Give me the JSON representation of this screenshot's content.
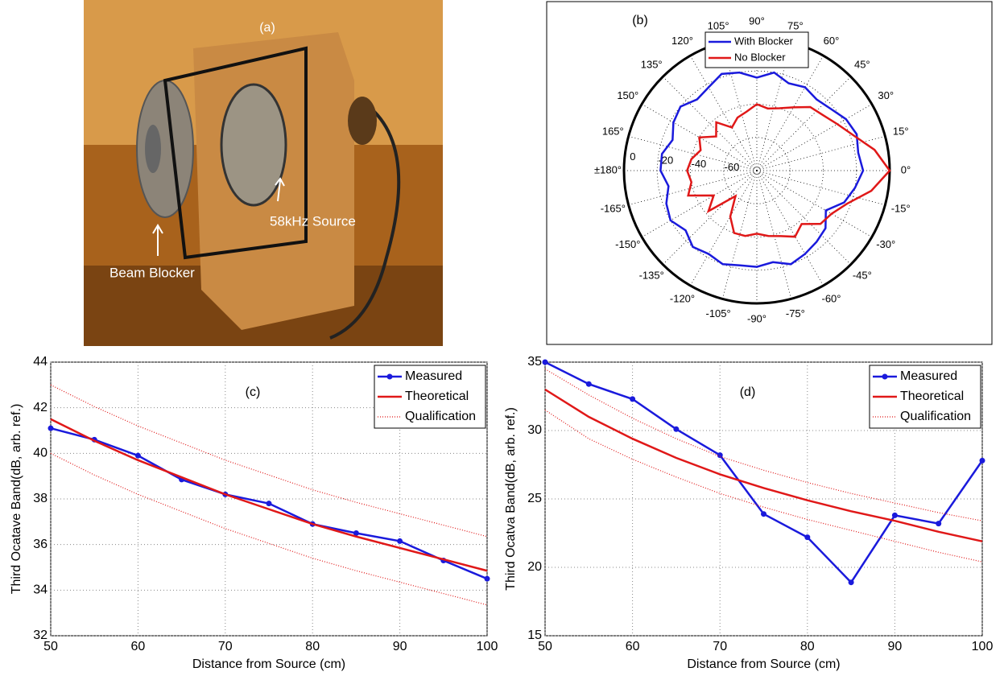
{
  "photo": {
    "label": "(a)",
    "source_label": "58kHz Source",
    "blocker_label": "Beam Blocker"
  },
  "chart_data": [
    {
      "type": "polar",
      "title": "(b)",
      "theta": [
        0,
        10,
        20,
        30,
        40,
        50,
        60,
        70,
        80,
        90,
        100,
        110,
        120,
        130,
        140,
        150,
        160,
        170,
        180,
        190,
        200,
        210,
        220,
        230,
        240,
        250,
        260,
        270,
        280,
        290,
        300,
        310,
        320,
        330,
        340,
        350
      ],
      "rlim": [
        -80,
        0
      ],
      "rticks": [
        -60,
        -40,
        -20,
        0
      ],
      "thetaticks": [
        {
          "value": 0,
          "label": "0°"
        },
        {
          "value": 15,
          "label": "15°"
        },
        {
          "value": 30,
          "label": "30°"
        },
        {
          "value": 45,
          "label": "45°"
        },
        {
          "value": 60,
          "label": "60°"
        },
        {
          "value": 75,
          "label": "75°"
        },
        {
          "value": 90,
          "label": "90°"
        },
        {
          "value": 105,
          "label": "105°"
        },
        {
          "value": 120,
          "label": "120°"
        },
        {
          "value": 135,
          "label": "135°"
        },
        {
          "value": 150,
          "label": "150°"
        },
        {
          "value": 165,
          "label": "165°"
        },
        {
          "value": 180,
          "label": "±180°"
        },
        {
          "value": -165,
          "label": "-165°"
        },
        {
          "value": -150,
          "label": "-150°"
        },
        {
          "value": -135,
          "label": "-135°"
        },
        {
          "value": -120,
          "label": "-120°"
        },
        {
          "value": -105,
          "label": "-105°"
        },
        {
          "value": -90,
          "label": "-90°"
        },
        {
          "value": -75,
          "label": "-75°"
        },
        {
          "value": -60,
          "label": "-60°"
        },
        {
          "value": -45,
          "label": "-45°"
        },
        {
          "value": -30,
          "label": "-30°"
        },
        {
          "value": -15,
          "label": "-15°"
        }
      ],
      "series": [
        {
          "name": "With Blocker",
          "color": "#1a1adc",
          "values": [
            -16,
            -18,
            -16,
            -18,
            -22,
            -24,
            -22,
            -24,
            -20,
            -24,
            -20,
            -18,
            -22,
            -24,
            -20,
            -22,
            -26,
            -22,
            -22,
            -26,
            -22,
            -20,
            -24,
            -20,
            -22,
            -20,
            -22,
            -22,
            -24,
            -20,
            -22,
            -24,
            -26,
            -32,
            -24,
            -20
          ]
        },
        {
          "name": "No Blocker",
          "color": "#e01818",
          "values": [
            0,
            -8,
            -18,
            -24,
            -28,
            -30,
            -36,
            -40,
            -42,
            -40,
            -44,
            -46,
            -50,
            -42,
            -48,
            -40,
            -44,
            -40,
            -38,
            -40,
            -36,
            -50,
            -42,
            -60,
            -48,
            -40,
            -40,
            -42,
            -40,
            -38,
            -34,
            -38,
            -30,
            -28,
            -22,
            -10
          ]
        }
      ],
      "legend": "top-center"
    },
    {
      "type": "line",
      "title": "(c)",
      "xlabel": "Distance from Source (cm)",
      "ylabel": "Third Ocatave Band(dB, arb. ref.)",
      "x": [
        50,
        55,
        60,
        65,
        70,
        75,
        80,
        85,
        90,
        95,
        100
      ],
      "xlim": [
        50,
        100
      ],
      "xticks": [
        50,
        60,
        70,
        80,
        90,
        100
      ],
      "ylim": [
        32,
        44
      ],
      "yticks": [
        32,
        34,
        36,
        38,
        40,
        42,
        44
      ],
      "grid": true,
      "legend": "top-right",
      "series": [
        {
          "name": "Measured",
          "color": "#1a1adc",
          "marker": true,
          "values": [
            41.1,
            40.6,
            39.9,
            38.85,
            38.2,
            37.8,
            36.9,
            36.5,
            36.15,
            35.3,
            34.5
          ]
        },
        {
          "name": "Theoretical",
          "color": "#e01818",
          "values": [
            41.5,
            40.55,
            39.7,
            38.95,
            38.2,
            37.55,
            36.9,
            36.35,
            35.85,
            35.35,
            34.85
          ]
        },
        {
          "name": "Qualification",
          "color": "#e01818",
          "dotted": true,
          "values": [
            43,
            42.05,
            41.2,
            40.45,
            39.7,
            39.05,
            38.4,
            37.85,
            37.35,
            36.85,
            36.35
          ],
          "lower": [
            40,
            39.05,
            38.2,
            37.45,
            36.7,
            36.05,
            35.4,
            34.85,
            34.35,
            33.85,
            33.35
          ]
        }
      ]
    },
    {
      "type": "line",
      "title": "(d)",
      "xlabel": "Distance from Source (cm)",
      "ylabel": "Third Ocatva Band(dB, arb. ref.)",
      "x": [
        50,
        55,
        60,
        65,
        70,
        75,
        80,
        85,
        90,
        95,
        100
      ],
      "xlim": [
        50,
        100
      ],
      "xticks": [
        50,
        60,
        70,
        80,
        90,
        100
      ],
      "ylim": [
        15,
        35
      ],
      "yticks": [
        15,
        20,
        25,
        30,
        35
      ],
      "grid": true,
      "legend": "top-right",
      "series": [
        {
          "name": "Measured",
          "color": "#1a1adc",
          "marker": true,
          "values": [
            35,
            33.4,
            32.3,
            30.1,
            28.2,
            23.9,
            22.2,
            18.9,
            23.8,
            23.2,
            27.8
          ]
        },
        {
          "name": "Theoretical",
          "color": "#e01818",
          "values": [
            33,
            31,
            29.4,
            28,
            26.8,
            25.8,
            24.9,
            24.1,
            23.4,
            22.6,
            21.9
          ]
        },
        {
          "name": "Qualification",
          "color": "#e01818",
          "dotted": true,
          "values": [
            34.5,
            32.6,
            30.9,
            29.4,
            28.1,
            27.1,
            26.2,
            25.4,
            24.7,
            24,
            23.4
          ],
          "lower": [
            31.5,
            29.4,
            27.9,
            26.6,
            25.4,
            24.4,
            23.5,
            22.7,
            21.9,
            21.1,
            20.4
          ]
        }
      ]
    }
  ]
}
